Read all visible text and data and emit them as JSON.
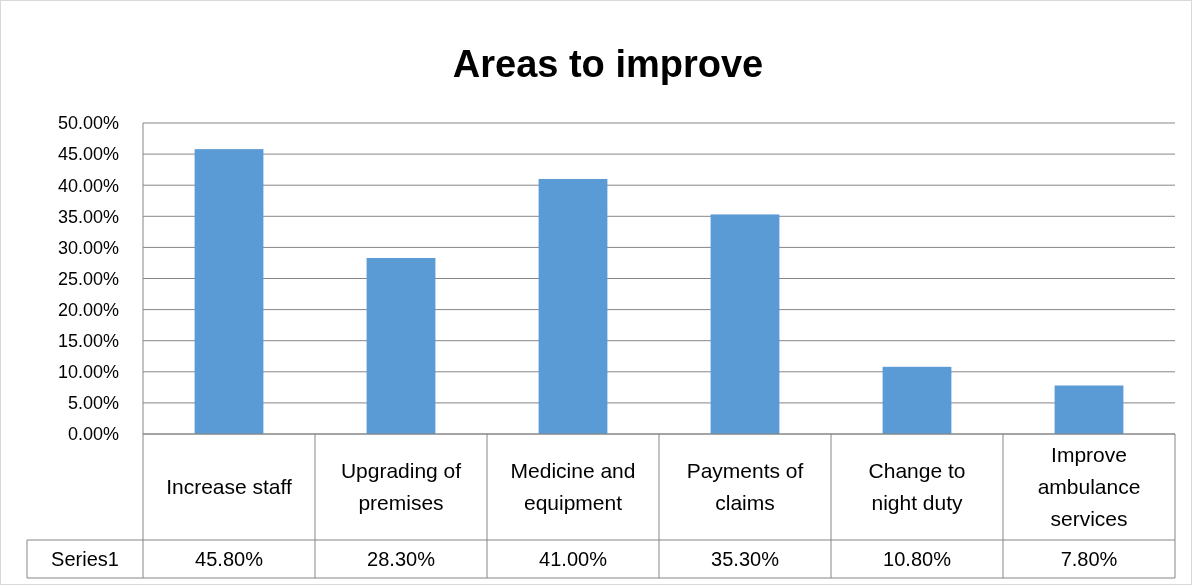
{
  "chart_data": {
    "type": "bar",
    "title": "Areas to improve",
    "categories": [
      "Increase staff",
      "Upgrading of premises",
      "Medicine and equipment",
      "Payments of claims",
      "Change to night duty",
      "Improve ambulance services"
    ],
    "series": [
      {
        "name": "Series1",
        "color": "#5b9bd5",
        "values": [
          45.8,
          28.3,
          41.0,
          35.3,
          10.8,
          7.8
        ],
        "value_labels": [
          "45.80%",
          "28.30%",
          "41.00%",
          "35.30%",
          "10.80%",
          "7.80%"
        ]
      }
    ],
    "ylim": [
      0,
      50
    ],
    "yticks": [
      {
        "value": 0,
        "label": "0.00%"
      },
      {
        "value": 5,
        "label": "5.00%"
      },
      {
        "value": 10,
        "label": "10.00%"
      },
      {
        "value": 15,
        "label": "15.00%"
      },
      {
        "value": 20,
        "label": "20.00%"
      },
      {
        "value": 25,
        "label": "25.00%"
      },
      {
        "value": 30,
        "label": "30.00%"
      },
      {
        "value": 35,
        "label": "35.00%"
      },
      {
        "value": 40,
        "label": "40.00%"
      },
      {
        "value": 45,
        "label": "45.00%"
      },
      {
        "value": 50,
        "label": "50.00%"
      }
    ],
    "grid": "y",
    "legend": false
  }
}
